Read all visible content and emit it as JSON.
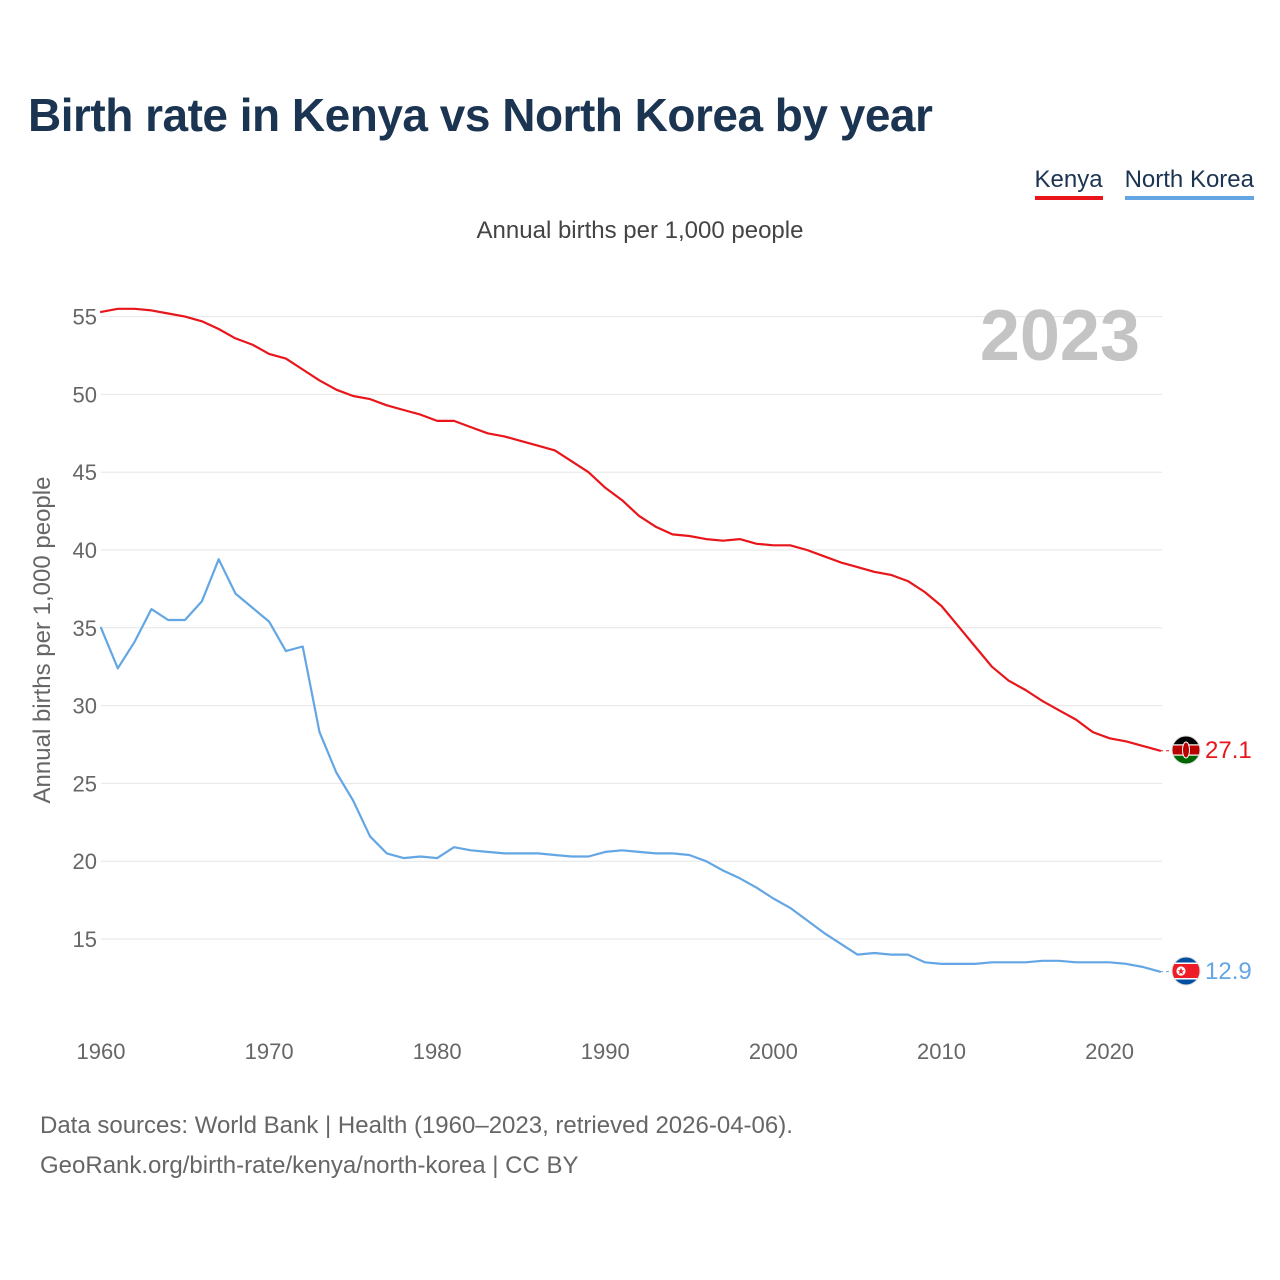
{
  "header": {
    "title": "Birth rate in Kenya vs North Korea by year",
    "subtitle": "Annual births per 1,000 people"
  },
  "legend": [
    {
      "label": "Kenya",
      "color": "#e8161b"
    },
    {
      "label": "North Korea",
      "color": "#64a6e4"
    }
  ],
  "footer": {
    "line1": "Data sources: World Bank | Health (1960–2023, retrieved 2026-04-06).",
    "line2": "GeoRank.org/birth-rate/kenya/north-korea | CC BY"
  },
  "chart_data": {
    "type": "line",
    "title": "Birth rate in Kenya vs North Korea by year",
    "ylabel": "Annual births per 1,000 people",
    "xlabel": "",
    "current_year": "2023",
    "xlim": [
      1960,
      2023
    ],
    "ylim": [
      10,
      56
    ],
    "x_ticks": [
      1960,
      1970,
      1980,
      1990,
      2000,
      2010,
      2020
    ],
    "y_ticks": [
      15,
      20,
      25,
      30,
      35,
      40,
      45,
      50,
      55
    ],
    "grid": true,
    "x": [
      1960,
      1961,
      1962,
      1963,
      1964,
      1965,
      1966,
      1967,
      1968,
      1969,
      1970,
      1971,
      1972,
      1973,
      1974,
      1975,
      1976,
      1977,
      1978,
      1979,
      1980,
      1981,
      1982,
      1983,
      1984,
      1985,
      1986,
      1987,
      1988,
      1989,
      1990,
      1991,
      1992,
      1993,
      1994,
      1995,
      1996,
      1997,
      1998,
      1999,
      2000,
      2001,
      2002,
      2003,
      2004,
      2005,
      2006,
      2007,
      2008,
      2009,
      2010,
      2011,
      2012,
      2013,
      2014,
      2015,
      2016,
      2017,
      2018,
      2019,
      2020,
      2021,
      2022,
      2023
    ],
    "series": [
      {
        "name": "Kenya",
        "color": "#e8161b",
        "flag": "kenya-flag-icon",
        "end_label": "27.1",
        "values": [
          55.3,
          55.5,
          55.5,
          55.4,
          55.2,
          55.0,
          54.7,
          54.2,
          53.6,
          53.2,
          52.6,
          52.3,
          51.6,
          50.9,
          50.3,
          49.9,
          49.7,
          49.3,
          49.0,
          48.7,
          48.3,
          48.3,
          47.9,
          47.5,
          47.3,
          47.0,
          46.7,
          46.4,
          45.7,
          45.0,
          44.0,
          43.2,
          42.2,
          41.5,
          41.0,
          40.9,
          40.7,
          40.6,
          40.7,
          40.4,
          40.3,
          40.3,
          40.0,
          39.6,
          39.2,
          38.9,
          38.6,
          38.4,
          38.0,
          37.3,
          36.4,
          35.1,
          33.8,
          32.5,
          31.6,
          31.0,
          30.3,
          29.7,
          29.1,
          28.3,
          27.9,
          27.7,
          27.4,
          27.1
        ]
      },
      {
        "name": "North Korea",
        "color": "#64a6e4",
        "flag": "north-korea-flag-icon",
        "end_label": "12.9",
        "values": [
          35.0,
          32.4,
          34.1,
          36.2,
          35.5,
          35.5,
          36.7,
          39.4,
          37.2,
          36.3,
          35.4,
          33.5,
          33.8,
          28.3,
          25.7,
          23.9,
          21.6,
          20.5,
          20.2,
          20.3,
          20.2,
          20.9,
          20.7,
          20.6,
          20.5,
          20.5,
          20.5,
          20.4,
          20.3,
          20.3,
          20.6,
          20.7,
          20.6,
          20.5,
          20.5,
          20.4,
          20.0,
          19.4,
          18.9,
          18.3,
          17.6,
          17.0,
          16.2,
          15.4,
          14.7,
          14.0,
          14.1,
          14.0,
          14.0,
          13.5,
          13.4,
          13.4,
          13.4,
          13.5,
          13.5,
          13.5,
          13.6,
          13.6,
          13.5,
          13.5,
          13.5,
          13.4,
          13.2,
          12.9
        ]
      }
    ]
  }
}
